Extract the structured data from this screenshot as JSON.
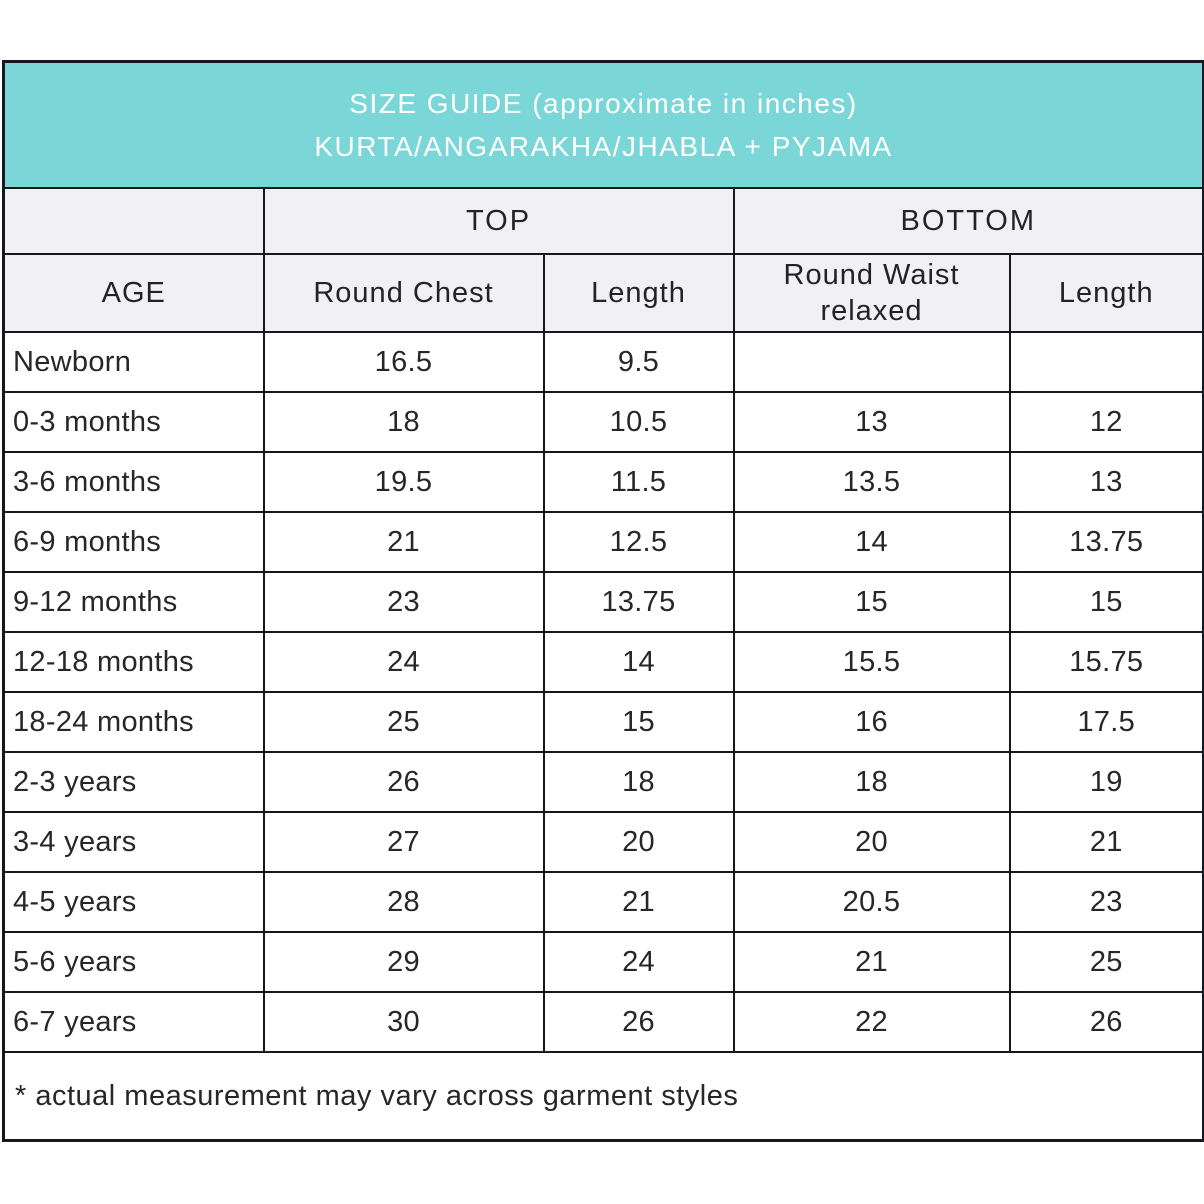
{
  "title": {
    "line1": "SIZE GUIDE (approximate in inches)",
    "line2": "KURTA/ANGARAKHA/JHABLA + PYJAMA"
  },
  "groups": {
    "top": "TOP",
    "bottom": "BOTTOM"
  },
  "columns": {
    "age": "AGE",
    "round_chest": "Round Chest",
    "top_length": "Length",
    "round_waist": "Round Waist relaxed",
    "bottom_length": "Length"
  },
  "rows": [
    {
      "age": "Newborn",
      "round_chest": "16.5",
      "top_length": "9.5",
      "round_waist": "",
      "bottom_length": ""
    },
    {
      "age": "0-3 months",
      "round_chest": "18",
      "top_length": "10.5",
      "round_waist": "13",
      "bottom_length": "12"
    },
    {
      "age": "3-6 months",
      "round_chest": "19.5",
      "top_length": "11.5",
      "round_waist": "13.5",
      "bottom_length": "13"
    },
    {
      "age": "6-9 months",
      "round_chest": "21",
      "top_length": "12.5",
      "round_waist": "14",
      "bottom_length": "13.75"
    },
    {
      "age": "9-12 months",
      "round_chest": "23",
      "top_length": "13.75",
      "round_waist": "15",
      "bottom_length": "15"
    },
    {
      "age": "12-18 months",
      "round_chest": "24",
      "top_length": "14",
      "round_waist": "15.5",
      "bottom_length": "15.75"
    },
    {
      "age": "18-24 months",
      "round_chest": "25",
      "top_length": "15",
      "round_waist": "16",
      "bottom_length": "17.5"
    },
    {
      "age": "2-3 years",
      "round_chest": "26",
      "top_length": "18",
      "round_waist": "18",
      "bottom_length": "19"
    },
    {
      "age": "3-4 years",
      "round_chest": "27",
      "top_length": "20",
      "round_waist": "20",
      "bottom_length": "21"
    },
    {
      "age": "4-5 years",
      "round_chest": "28",
      "top_length": "21",
      "round_waist": "20.5",
      "bottom_length": "23"
    },
    {
      "age": "5-6 years",
      "round_chest": "29",
      "top_length": "24",
      "round_waist": "21",
      "bottom_length": "25"
    },
    {
      "age": "6-7 years",
      "round_chest": "30",
      "top_length": "26",
      "round_waist": "22",
      "bottom_length": "26"
    }
  ],
  "footnote": "* actual measurement may vary across garment styles",
  "colors": {
    "title_bg": "#7bd7d7",
    "title_text": "#ffffff",
    "subheader_bg": "#f1f1f3",
    "border": "#17171f",
    "body_text": "#26262b",
    "row_bg": "#ffffff"
  }
}
